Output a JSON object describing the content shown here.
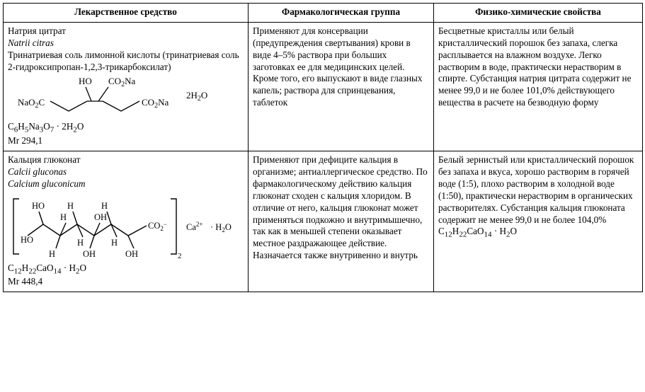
{
  "headers": {
    "col1": "Лекарственное средство",
    "col2": "Фармакологическая группа",
    "col3": "Физико-химические свойства"
  },
  "rows": [
    {
      "name_ru": "Натрия цитрат",
      "name_lat": "Natrii citras",
      "name_chem": "Тринатриевая соль лимонной кислоты (тринатриевая соль 2-гидроксипропан-1,2,3-трикарбоксилат)",
      "structure_labels": {
        "oh": "HO",
        "co2na_top": "CO₂Na",
        "nao2c": "NaO₂C",
        "co2na_right": "CO₂Na",
        "hydrate": "2H₂O"
      },
      "mol_formula_html": "C<sub>6</sub>H<sub>5</sub>Na<sub>3</sub>O<sub>7</sub> · 2H<sub>2</sub>O",
      "mr": "Mr 294,1",
      "pharm": "Применяют для консервации (предупреждения свертывания) крови в виде 4–5% раствора при больших заготовках ее для медицинских целей. Кроме того, его выпускают в виде глазных капель; раствора для спринцевания, таблеток",
      "phys": "Бесцветные кристаллы или белый кристаллический порошок без запаха, слегка расплывается на влажном воздухе. Легко растворим в воде, практически нерастворим в спирте. Субстанция натрия цитрата содержит не менее 99,0 и не более 101,0% действующего вещества в расчете на безводную форму"
    },
    {
      "name_ru": "Кальция глюконат",
      "name_lat1": "Calcii gluconas",
      "name_lat2": "Calcium gluconicum",
      "structure_labels": {
        "ho_left": "HO",
        "h": "H",
        "oh": "OH",
        "co2minus": "CO₂⁻",
        "sub2": "2",
        "ca": "Ca²⁺",
        "hydrate": "· H₂O"
      },
      "mol_formula_html": "C<sub>12</sub>H<sub>22</sub>CaO<sub>14</sub> · H<sub>2</sub>O",
      "mr": "Mr 448,4",
      "pharm": "Применяют при дефиците кальция в организме; антиаллергическое средство. По фармакологическому действию кальция глюконат сходен с кальция хлоридом. В отличие от него, кальция глюконат может применяться подкожно и внутримышечно, так как в меньшей степени оказывает местное раздражающее действие. Назначается также внутривенно и внутрь",
      "phys_html": "Белый зернистый или кристаллический порошок без запаха и вкуса, хорошо растворим в горячей воде (1:5), плохо растворим в холодной воде (1:50), практически нерастворим в органических растворителях. Субстанция кальция глюконата содержит не менее 99,0 и не более 104,0% C<sub>12</sub>H<sub>22</sub>CaO<sub>14</sub> · H<sub>2</sub>O"
    }
  ],
  "style": {
    "font_family": "Times New Roman",
    "font_size_pt": 10,
    "border_color": "#000000",
    "background": "#ffffff"
  }
}
